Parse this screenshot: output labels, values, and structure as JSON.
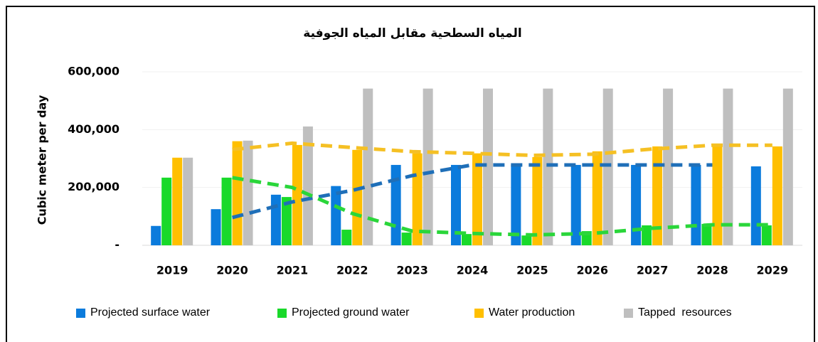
{
  "chart_data": {
    "type": "bar",
    "title": "المياه السطحية مقابل المياه الجوفية",
    "y_label": "Cubic meter per day",
    "categories": [
      "2019",
      "2020",
      "2021",
      "2022",
      "2023",
      "2024",
      "2025",
      "2026",
      "2027",
      "2028",
      "2029"
    ],
    "ylim": [
      0,
      600000
    ],
    "yticks": [
      {
        "value": 0,
        "label": "-"
      },
      {
        "value": 200000,
        "label": "200,000"
      },
      {
        "value": 400000,
        "label": "400,000"
      },
      {
        "value": 600000,
        "label": "600,000"
      }
    ],
    "grid": true,
    "legend": "bottom",
    "series": [
      {
        "name": "Projected surface water",
        "color": "#0b7bdc",
        "values": [
          67000,
          125000,
          175000,
          205000,
          278000,
          278000,
          278000,
          278000,
          278000,
          278000,
          273000
        ],
        "trend": [
          null,
          96000,
          150000,
          190000,
          241000,
          278000,
          278000,
          278000,
          278000,
          278000,
          null
        ],
        "trend_color": "#1f6fb8"
      },
      {
        "name": "Projected ground water",
        "color": "#19d92a",
        "values": [
          234000,
          234000,
          167000,
          54000,
          44000,
          39000,
          34000,
          49000,
          69000,
          74000,
          69000
        ],
        "trend": [
          null,
          234000,
          200000,
          110000,
          49000,
          41000,
          36000,
          41000,
          59000,
          71000,
          71000
        ],
        "trend_color": "#2ad63a"
      },
      {
        "name": "Water production",
        "color": "#ffbf00",
        "values": [
          303000,
          360000,
          347000,
          330000,
          318000,
          318000,
          305000,
          325000,
          342000,
          350000,
          342000
        ],
        "trend": [
          null,
          331000,
          353000,
          338000,
          324000,
          318000,
          311000,
          315000,
          333000,
          346000,
          346000
        ],
        "trend_color": "#f5c024"
      },
      {
        "name": "Tapped  resources",
        "color": "#bfbfbf",
        "values": [
          303000,
          362000,
          411000,
          542000,
          542000,
          542000,
          542000,
          542000,
          542000,
          542000,
          542000
        ]
      }
    ]
  }
}
